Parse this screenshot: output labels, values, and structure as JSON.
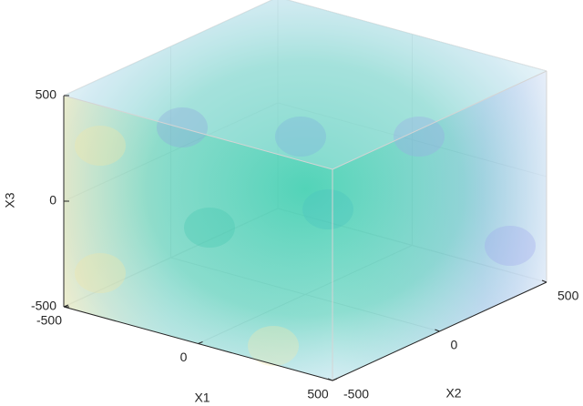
{
  "chart_data": {
    "type": "volume",
    "xlabel": "X1",
    "ylabel": "X2",
    "zlabel": "X3",
    "xlim": [
      -500,
      500
    ],
    "ylim": [
      -500,
      500
    ],
    "zlim": [
      -500,
      500
    ],
    "xticks": [
      -500,
      0,
      500
    ],
    "yticks": [
      -500,
      0,
      500
    ],
    "zticks": [
      -500,
      0,
      500
    ],
    "grid": true
  }
}
